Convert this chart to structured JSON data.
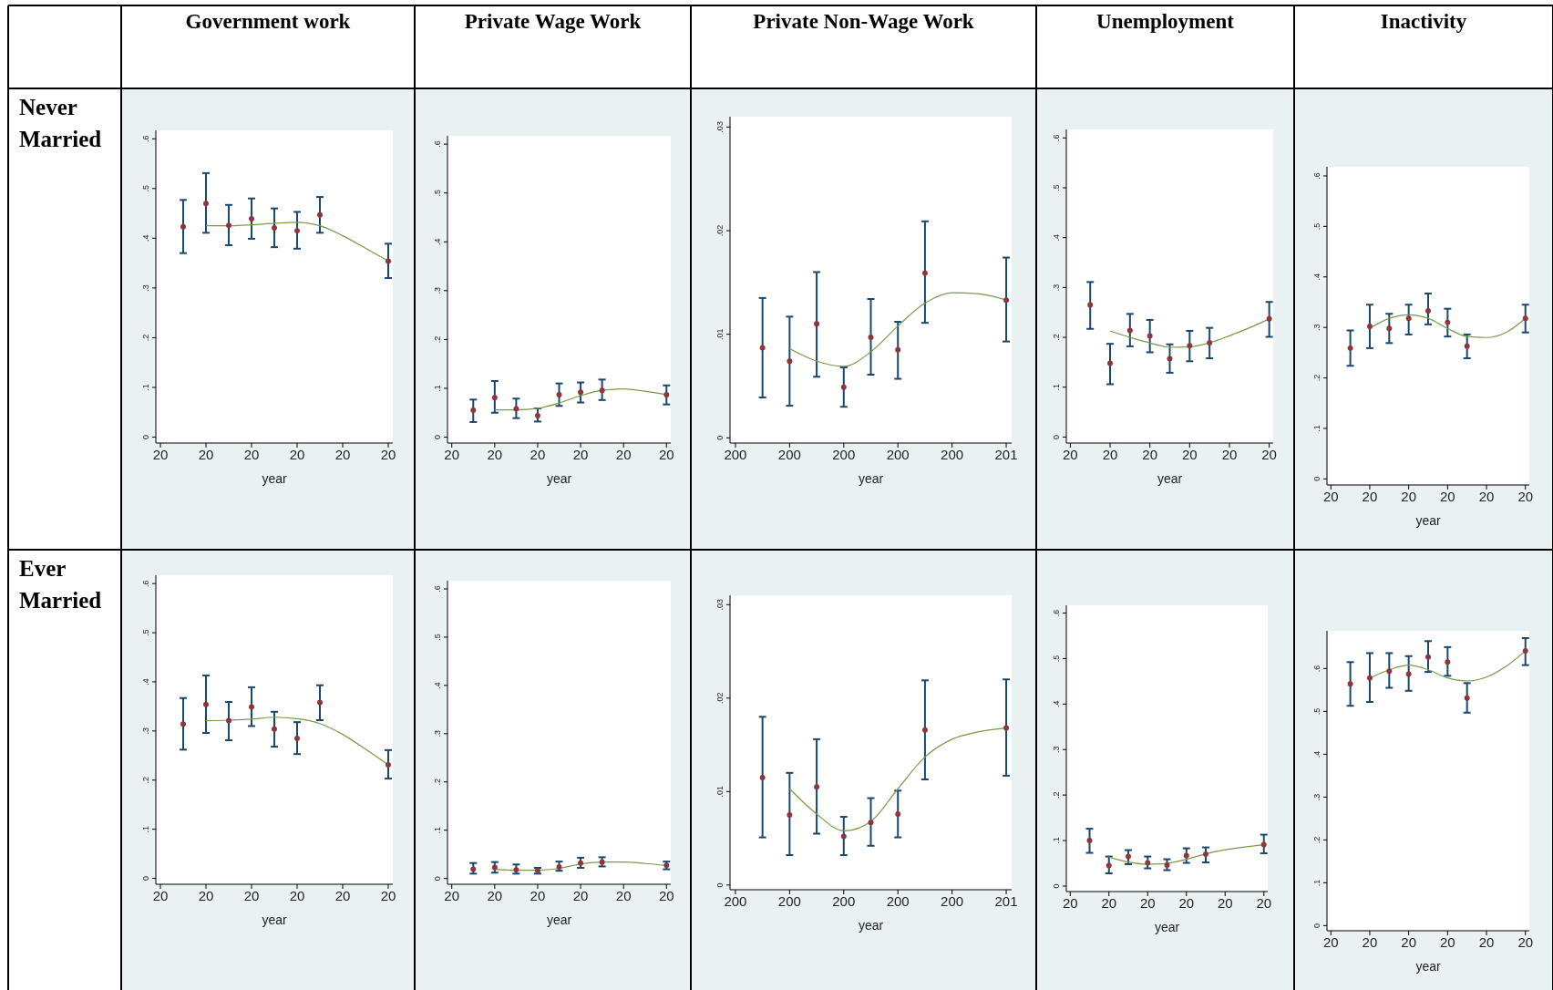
{
  "chart_data": [
    {
      "type": "scatter",
      "title": "Government work",
      "annotations": [
        "Never Married"
      ],
      "xlabel": "year",
      "marker": "circle",
      "categories": [
        "20",
        null,
        "20",
        null,
        "20",
        null,
        "20",
        null,
        "20",
        null,
        "20"
      ],
      "ylim": [
        -0.012,
        0.617
      ],
      "yticks": [
        {
          "value": 0,
          "label": "0"
        },
        {
          "value": 0.1,
          "label": ".1"
        },
        {
          "value": 0.2,
          "label": ".2"
        },
        {
          "value": 0.3,
          "label": ".3"
        },
        {
          "value": 0.4,
          "label": ".4"
        },
        {
          "value": 0.5,
          "label": ".5"
        },
        {
          "value": 0.6,
          "label": ".6"
        }
      ],
      "series": [
        {
          "color": "#90353b",
          "values": [
            null,
            0.423,
            0.47,
            0.426,
            0.439,
            0.421,
            0.415,
            0.447,
            null,
            null,
            0.354
          ],
          "errors": [
            null,
            [
              0.37,
              0.477
            ],
            [
              0.411,
              0.531
            ],
            [
              0.386,
              0.467
            ],
            [
              0.399,
              0.48
            ],
            [
              0.382,
              0.46
            ],
            [
              0.379,
              0.453
            ],
            [
              0.411,
              0.483
            ],
            null,
            null,
            [
              0.32,
              0.389
            ]
          ]
        },
        {
          "type": "line",
          "color": "#7a9a4a",
          "marker": "none",
          "line_style": "solid",
          "values": [
            null,
            null,
            0.425,
            0.425,
            0.427,
            0.43,
            0.432,
            0.425,
            0.405,
            0.38,
            0.354
          ]
        }
      ]
    },
    {
      "type": "scatter",
      "title": "Private Wage Work",
      "xlabel": "year",
      "marker": "circle",
      "categories": [
        "20",
        null,
        "20",
        null,
        "20",
        null,
        "20",
        null,
        "20",
        null,
        "20"
      ],
      "ylim": [
        -0.012,
        0.617
      ],
      "yticks": [
        {
          "value": 0,
          "label": "0"
        },
        {
          "value": 0.1,
          "label": ".1"
        },
        {
          "value": 0.2,
          "label": ".2"
        },
        {
          "value": 0.3,
          "label": ".3"
        },
        {
          "value": 0.4,
          "label": ".4"
        },
        {
          "value": 0.5,
          "label": ".5"
        },
        {
          "value": 0.6,
          "label": ".6"
        }
      ],
      "series": [
        {
          "color": "#90353b",
          "values": [
            null,
            0.055,
            0.081,
            0.058,
            0.044,
            0.087,
            0.092,
            0.096,
            null,
            null,
            0.087
          ],
          "errors": [
            null,
            [
              0.031,
              0.077
            ],
            [
              0.05,
              0.115
            ],
            [
              0.039,
              0.079
            ],
            [
              0.032,
              0.059
            ],
            [
              0.064,
              0.11
            ],
            [
              0.071,
              0.112
            ],
            [
              0.076,
              0.118
            ],
            null,
            null,
            [
              0.067,
              0.106
            ]
          ]
        },
        {
          "type": "line",
          "color": "#7a9a4a",
          "marker": "none",
          "line_style": "solid",
          "values": [
            null,
            null,
            0.056,
            0.056,
            0.059,
            0.07,
            0.085,
            0.096,
            0.099,
            0.094,
            0.087
          ]
        }
      ]
    },
    {
      "type": "scatter",
      "title": "Private Non-Wage Work",
      "xlabel": "year",
      "marker": "circle",
      "categories": [
        "200",
        null,
        "200",
        null,
        "200",
        null,
        "200",
        null,
        "200",
        null,
        "201"
      ],
      "ylim": [
        -0.0005,
        0.031
      ],
      "yticks": [
        {
          "value": 0,
          "label": "0"
        },
        {
          "value": 0.01,
          "label": ".01"
        },
        {
          "value": 0.02,
          "label": ".02"
        },
        {
          "value": 0.03,
          "label": ".03"
        }
      ],
      "series": [
        {
          "color": "#90353b",
          "values": [
            null,
            0.0087,
            0.0074,
            0.011,
            0.0049,
            0.0097,
            0.0085,
            0.0159,
            null,
            null,
            0.0133
          ],
          "errors": [
            null,
            [
              0.0039,
              0.0135
            ],
            [
              0.0031,
              0.0117
            ],
            [
              0.0059,
              0.016
            ],
            [
              0.003,
              0.0068
            ],
            [
              0.0061,
              0.0134
            ],
            [
              0.0057,
              0.0112
            ],
            [
              0.0111,
              0.0209
            ],
            null,
            null,
            [
              0.0093,
              0.0174
            ]
          ]
        },
        {
          "type": "line",
          "color": "#7a9a4a",
          "marker": "none",
          "line_style": "solid",
          "values": [
            null,
            null,
            0.0086,
            0.0074,
            0.0069,
            0.0083,
            0.0108,
            0.013,
            0.014,
            0.0139,
            0.0133
          ]
        }
      ]
    },
    {
      "type": "scatter",
      "title": "Unemployment",
      "xlabel": "year",
      "marker": "circle",
      "categories": [
        "20",
        null,
        "20",
        null,
        "20",
        null,
        "20",
        null,
        "20",
        null,
        "20"
      ],
      "ylim": [
        -0.012,
        0.617
      ],
      "yticks": [
        {
          "value": 0,
          "label": "0"
        },
        {
          "value": 0.1,
          "label": ".1"
        },
        {
          "value": 0.2,
          "label": ".2"
        },
        {
          "value": 0.3,
          "label": ".3"
        },
        {
          "value": 0.4,
          "label": ".4"
        },
        {
          "value": 0.5,
          "label": ".5"
        },
        {
          "value": 0.6,
          "label": ".6"
        }
      ],
      "series": [
        {
          "color": "#90353b",
          "values": [
            null,
            0.265,
            0.148,
            0.214,
            0.203,
            0.157,
            0.183,
            0.189,
            null,
            null,
            0.237
          ],
          "errors": [
            null,
            [
              0.217,
              0.311
            ],
            [
              0.106,
              0.187
            ],
            [
              0.182,
              0.247
            ],
            [
              0.17,
              0.235
            ],
            [
              0.129,
              0.186
            ],
            [
              0.152,
              0.213
            ],
            [
              0.158,
              0.219
            ],
            null,
            null,
            [
              0.201,
              0.271
            ]
          ]
        },
        {
          "type": "line",
          "color": "#7a9a4a",
          "marker": "none",
          "line_style": "solid",
          "values": [
            null,
            null,
            0.213,
            0.2,
            0.189,
            0.18,
            0.181,
            0.189,
            0.203,
            0.219,
            0.237
          ]
        }
      ]
    },
    {
      "type": "scatter",
      "title": "Inactivity",
      "xlabel": "year",
      "marker": "circle",
      "categories": [
        "20",
        null,
        "20",
        null,
        "20",
        null,
        "20",
        null,
        "20",
        null,
        "20"
      ],
      "ylim": [
        -0.012,
        0.618
      ],
      "yticks": [
        {
          "value": 0,
          "label": "0"
        },
        {
          "value": 0.1,
          "label": ".1"
        },
        {
          "value": 0.2,
          "label": ".2"
        },
        {
          "value": 0.3,
          "label": ".3"
        },
        {
          "value": 0.4,
          "label": ".4"
        },
        {
          "value": 0.5,
          "label": ".5"
        },
        {
          "value": 0.6,
          "label": ".6"
        }
      ],
      "series": [
        {
          "color": "#90353b",
          "values": [
            null,
            0.259,
            0.302,
            0.298,
            0.318,
            0.333,
            0.31,
            0.263,
            null,
            null,
            0.318
          ],
          "errors": [
            null,
            [
              0.224,
              0.294
            ],
            [
              0.259,
              0.345
            ],
            [
              0.269,
              0.327
            ],
            [
              0.286,
              0.345
            ],
            [
              0.306,
              0.367
            ],
            [
              0.282,
              0.337
            ],
            [
              0.239,
              0.286
            ],
            null,
            null,
            [
              0.29,
              0.345
            ]
          ]
        },
        {
          "type": "line",
          "color": "#7a9a4a",
          "marker": "none",
          "line_style": "solid",
          "values": [
            null,
            null,
            0.298,
            0.318,
            0.325,
            0.318,
            0.298,
            0.282,
            0.28,
            0.29,
            0.318
          ]
        }
      ]
    },
    {
      "type": "scatter",
      "annotations": [
        "Ever Married"
      ],
      "xlabel": "year",
      "marker": "circle",
      "categories": [
        "20",
        null,
        "20",
        null,
        "20",
        null,
        "20",
        null,
        "20",
        null,
        "20"
      ],
      "ylim": [
        -0.012,
        0.617
      ],
      "yticks": [
        {
          "value": 0,
          "label": "0"
        },
        {
          "value": 0.1,
          "label": ".1"
        },
        {
          "value": 0.2,
          "label": ".2"
        },
        {
          "value": 0.3,
          "label": ".3"
        },
        {
          "value": 0.4,
          "label": ".4"
        },
        {
          "value": 0.5,
          "label": ".5"
        },
        {
          "value": 0.6,
          "label": ".6"
        }
      ],
      "series": [
        {
          "color": "#90353b",
          "values": [
            null,
            0.314,
            0.354,
            0.321,
            0.349,
            0.304,
            0.285,
            0.358,
            null,
            null,
            0.231
          ],
          "errors": [
            null,
            [
              0.262,
              0.367
            ],
            [
              0.296,
              0.413
            ],
            [
              0.281,
              0.359
            ],
            [
              0.31,
              0.389
            ],
            [
              0.268,
              0.339
            ],
            [
              0.253,
              0.318
            ],
            [
              0.322,
              0.393
            ],
            null,
            null,
            [
              0.203,
              0.261
            ]
          ]
        },
        {
          "type": "line",
          "color": "#7a9a4a",
          "marker": "none",
          "line_style": "solid",
          "values": [
            null,
            null,
            0.321,
            0.322,
            0.324,
            0.328,
            0.325,
            0.315,
            0.293,
            0.263,
            0.231
          ]
        }
      ]
    },
    {
      "type": "scatter",
      "xlabel": "year",
      "marker": "circle",
      "categories": [
        "20",
        null,
        "20",
        null,
        "20",
        null,
        "20",
        null,
        "20",
        null,
        "20"
      ],
      "ylim": [
        -0.012,
        0.617
      ],
      "yticks": [
        {
          "value": 0,
          "label": "0"
        },
        {
          "value": 0.1,
          "label": ".1"
        },
        {
          "value": 0.2,
          "label": ".2"
        },
        {
          "value": 0.3,
          "label": ".3"
        },
        {
          "value": 0.4,
          "label": ".4"
        },
        {
          "value": 0.5,
          "label": ".5"
        },
        {
          "value": 0.6,
          "label": ".6"
        }
      ],
      "series": [
        {
          "color": "#90353b",
          "values": [
            null,
            0.019,
            0.023,
            0.018,
            0.016,
            0.024,
            0.032,
            0.034,
            null,
            null,
            0.027
          ],
          "errors": [
            null,
            [
              0.01,
              0.032
            ],
            [
              0.012,
              0.034
            ],
            [
              0.01,
              0.029
            ],
            [
              0.01,
              0.022
            ],
            [
              0.016,
              0.035
            ],
            [
              0.022,
              0.043
            ],
            [
              0.025,
              0.044
            ],
            null,
            null,
            [
              0.019,
              0.035
            ]
          ]
        },
        {
          "type": "line",
          "color": "#7a9a4a",
          "marker": "none",
          "line_style": "solid",
          "values": [
            null,
            null,
            0.019,
            0.017,
            0.017,
            0.021,
            0.03,
            0.034,
            0.034,
            0.031,
            0.027
          ]
        }
      ]
    },
    {
      "type": "scatter",
      "xlabel": "year",
      "marker": "circle",
      "categories": [
        "200",
        null,
        "200",
        null,
        "200",
        null,
        "200",
        null,
        "200",
        null,
        "201"
      ],
      "ylim": [
        -0.0005,
        0.031
      ],
      "yticks": [
        {
          "value": 0,
          "label": "0"
        },
        {
          "value": 0.01,
          "label": ".01"
        },
        {
          "value": 0.02,
          "label": ".02"
        },
        {
          "value": 0.03,
          "label": ".03"
        }
      ],
      "series": [
        {
          "color": "#90353b",
          "values": [
            null,
            0.0115,
            0.0075,
            0.0105,
            0.0052,
            0.0067,
            0.0076,
            0.0166,
            null,
            null,
            0.0168
          ],
          "errors": [
            null,
            [
              0.0051,
              0.018
            ],
            [
              0.0032,
              0.012
            ],
            [
              0.0055,
              0.0156
            ],
            [
              0.0032,
              0.0073
            ],
            [
              0.0042,
              0.0093
            ],
            [
              0.0051,
              0.0101
            ],
            [
              0.0113,
              0.0219
            ],
            null,
            null,
            [
              0.0117,
              0.022
            ]
          ]
        },
        {
          "type": "line",
          "color": "#7a9a4a",
          "marker": "none",
          "line_style": "solid",
          "values": [
            null,
            null,
            0.0103,
            0.0076,
            0.0058,
            0.0068,
            0.0103,
            0.0137,
            0.0156,
            0.0164,
            0.0168
          ]
        }
      ]
    },
    {
      "type": "scatter",
      "xlabel": "year",
      "marker": "circle",
      "categories": [
        "20",
        null,
        "20",
        null,
        "20",
        null,
        "20",
        null,
        "20",
        null,
        "20"
      ],
      "ylim": [
        -0.012,
        0.617
      ],
      "yticks": [
        {
          "value": 0,
          "label": "0"
        },
        {
          "value": 0.1,
          "label": ".1"
        },
        {
          "value": 0.2,
          "label": ".2"
        },
        {
          "value": 0.3,
          "label": ".3"
        },
        {
          "value": 0.4,
          "label": ".4"
        },
        {
          "value": 0.5,
          "label": ".5"
        },
        {
          "value": 0.6,
          "label": ".6"
        }
      ],
      "series": [
        {
          "color": "#90353b",
          "values": [
            null,
            0.1,
            0.045,
            0.065,
            0.051,
            0.046,
            0.067,
            0.07,
            null,
            null,
            0.091
          ],
          "errors": [
            null,
            [
              0.073,
              0.126
            ],
            [
              0.028,
              0.065
            ],
            [
              0.048,
              0.079
            ],
            [
              0.039,
              0.065
            ],
            [
              0.035,
              0.059
            ],
            [
              0.051,
              0.083
            ],
            [
              0.052,
              0.085
            ],
            null,
            null,
            [
              0.072,
              0.113
            ]
          ]
        },
        {
          "type": "line",
          "color": "#7a9a4a",
          "marker": "none",
          "line_style": "solid",
          "values": [
            null,
            null,
            0.064,
            0.053,
            0.048,
            0.05,
            0.059,
            0.071,
            0.08,
            0.086,
            0.091
          ]
        }
      ]
    },
    {
      "type": "scatter",
      "xlabel": "year",
      "marker": "circle",
      "categories": [
        "20",
        null,
        "20",
        null,
        "20",
        null,
        "20",
        null,
        "20",
        null,
        "20"
      ],
      "ylim": [
        -0.012,
        0.688
      ],
      "yticks": [
        {
          "value": 0,
          "label": "0"
        },
        {
          "value": 0.1,
          "label": ".1"
        },
        {
          "value": 0.2,
          "label": ".2"
        },
        {
          "value": 0.3,
          "label": ".3"
        },
        {
          "value": 0.4,
          "label": ".4"
        },
        {
          "value": 0.5,
          "label": ".5"
        },
        {
          "value": 0.6,
          "label": ".6"
        }
      ],
      "series": [
        {
          "color": "#90353b",
          "values": [
            null,
            0.564,
            0.578,
            0.594,
            0.587,
            0.627,
            0.615,
            0.531,
            null,
            null,
            0.641
          ],
          "errors": [
            null,
            [
              0.513,
              0.615
            ],
            [
              0.522,
              0.636
            ],
            [
              0.555,
              0.636
            ],
            [
              0.548,
              0.629
            ],
            [
              0.592,
              0.664
            ],
            [
              0.583,
              0.65
            ],
            [
              0.497,
              0.566
            ],
            null,
            null,
            [
              0.608,
              0.671
            ]
          ]
        },
        {
          "type": "line",
          "color": "#7a9a4a",
          "marker": "none",
          "line_style": "solid",
          "values": [
            null,
            null,
            0.578,
            0.597,
            0.608,
            0.597,
            0.578,
            0.571,
            0.58,
            0.605,
            0.641
          ]
        }
      ]
    }
  ]
}
